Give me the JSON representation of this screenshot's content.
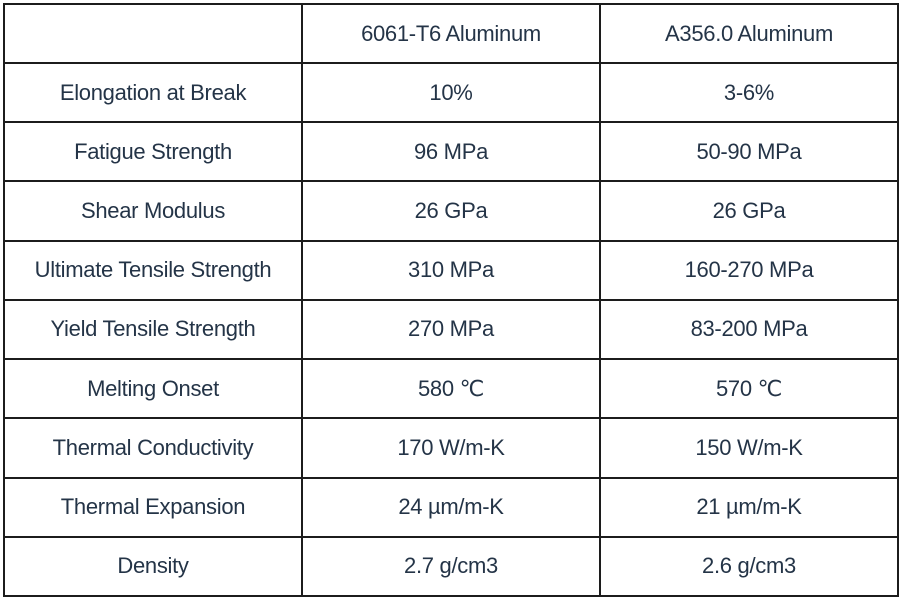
{
  "table": {
    "headers": [
      "",
      "6061-T6 Aluminum",
      "A356.0 Aluminum"
    ],
    "rows": [
      [
        "Elongation at Break",
        "10%",
        "3-6%"
      ],
      [
        "Fatigue Strength",
        "96 MPa",
        "50-90 MPa"
      ],
      [
        "Shear Modulus",
        "26 GPa",
        "26 GPa"
      ],
      [
        "Ultimate Tensile Strength",
        "310 MPa",
        "160-270 MPa"
      ],
      [
        "Yield Tensile Strength",
        "270 MPa",
        "83-200 MPa"
      ],
      [
        "Melting Onset",
        "580 ℃",
        "570 ℃"
      ],
      [
        "Thermal Conductivity",
        "170 W/m-K",
        "150 W/m-K"
      ],
      [
        "Thermal Expansion",
        "24 µm/m-K",
        "21 µm/m-K"
      ],
      [
        "Density",
        "2.7 g/cm3",
        "2.6 g/cm3"
      ]
    ]
  }
}
